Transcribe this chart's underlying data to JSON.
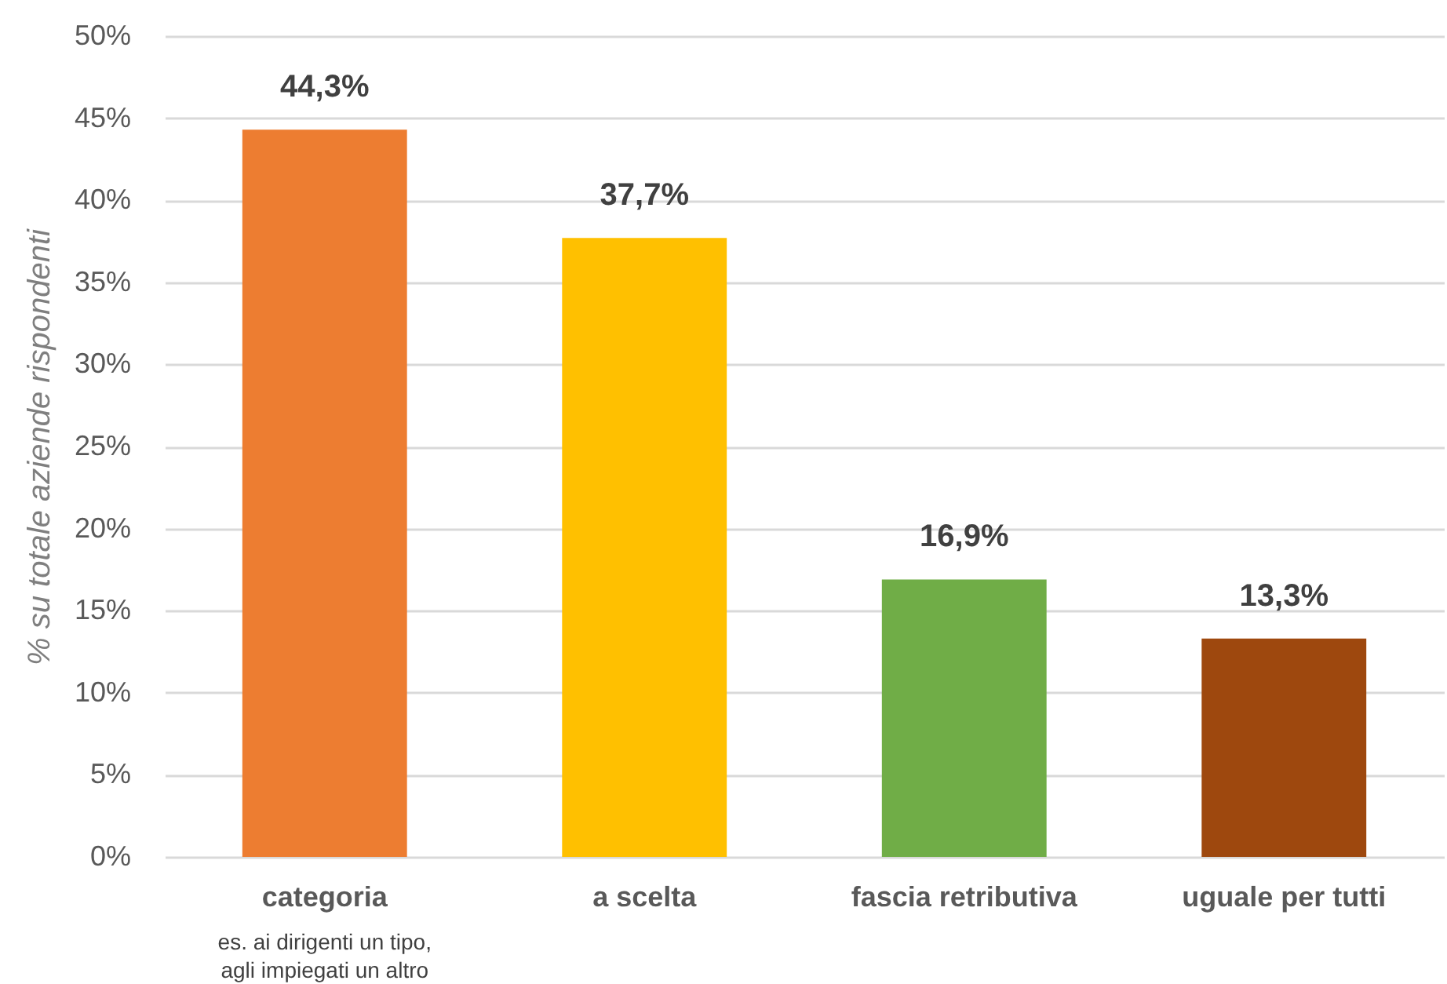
{
  "chart_data": {
    "type": "bar",
    "ylabel": "% su totale aziende rispondenti",
    "categories": [
      "categoria",
      "a scelta",
      "fascia retributiva",
      "uguale per tutti"
    ],
    "values": [
      44.3,
      37.7,
      16.9,
      13.3
    ],
    "colors": [
      "#ed7d31",
      "#ffc000",
      "#70ad47",
      "#9e480e"
    ],
    "value_labels": [
      "44,3%",
      "37,7%",
      "16,9%",
      "13,3%"
    ],
    "ylim": [
      0,
      50
    ],
    "yticks": [
      {
        "value": 0,
        "label": "0%"
      },
      {
        "value": 5,
        "label": "5%"
      },
      {
        "value": 10,
        "label": "10%"
      },
      {
        "value": 15,
        "label": "15%"
      },
      {
        "value": 20,
        "label": "20%"
      },
      {
        "value": 25,
        "label": "25%"
      },
      {
        "value": 30,
        "label": "30%"
      },
      {
        "value": 35,
        "label": "35%"
      },
      {
        "value": 40,
        "label": "40%"
      },
      {
        "value": 45,
        "label": "45%"
      },
      {
        "value": 50,
        "label": "50%"
      }
    ],
    "grid": "y",
    "annotations": [
      "es. ai dirigenti un tipo, agli impiegati un altro"
    ]
  }
}
